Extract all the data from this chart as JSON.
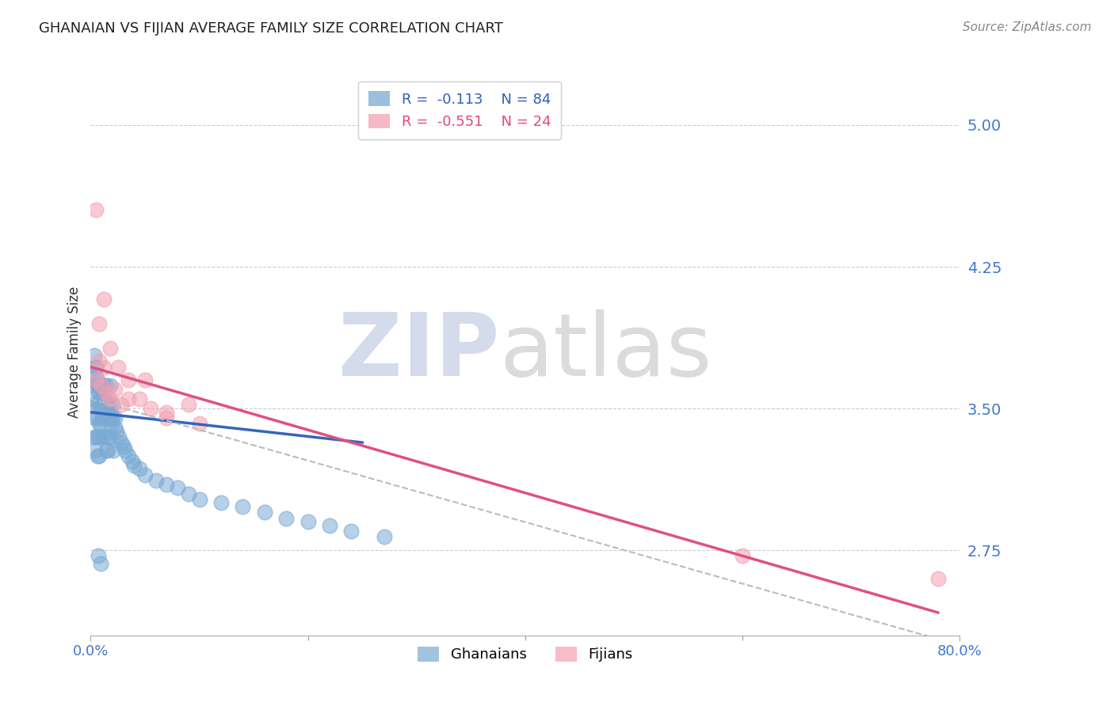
{
  "title": "GHANAIAN VS FIJIAN AVERAGE FAMILY SIZE CORRELATION CHART",
  "source": "Source: ZipAtlas.com",
  "ylabel": "Average Family Size",
  "xlim": [
    0.0,
    0.8
  ],
  "ylim": [
    2.3,
    5.3
  ],
  "yticks": [
    2.75,
    3.5,
    4.25,
    5.0
  ],
  "xticks": [
    0.0,
    0.8
  ],
  "xtick_labels": [
    "0.0%",
    "80.0%"
  ],
  "xticks_minor": [
    0.2,
    0.4,
    0.6
  ],
  "ghanaian_color": "#7BAAD4",
  "fijian_color": "#F4A0B0",
  "trend_blue": "#3366BB",
  "trend_pink": "#E05080",
  "trend_dashed": "#BBBBBB",
  "R_ghanaian": -0.113,
  "N_ghanaian": 84,
  "R_fijian": -0.551,
  "N_fijian": 24,
  "legend_label_ghanaian": "Ghanaians",
  "legend_label_fijian": "Fijians",
  "watermark_zip": "ZIP",
  "watermark_atlas": "atlas",
  "background_color": "#FFFFFF",
  "blue_trend_x0": 0.0,
  "blue_trend_x1": 0.25,
  "blue_trend_y0": 3.48,
  "blue_trend_y1": 3.32,
  "pink_trend_x0": 0.0,
  "pink_trend_x1": 0.78,
  "pink_trend_y0": 3.72,
  "pink_trend_y1": 2.42,
  "dash_trend_x0": 0.0,
  "dash_trend_x1": 0.78,
  "dash_trend_y0": 3.55,
  "dash_trend_y1": 2.28,
  "ghanaian_x": [
    0.002,
    0.003,
    0.003,
    0.004,
    0.004,
    0.005,
    0.005,
    0.005,
    0.006,
    0.006,
    0.006,
    0.007,
    0.007,
    0.008,
    0.008,
    0.008,
    0.009,
    0.009,
    0.01,
    0.01,
    0.01,
    0.011,
    0.011,
    0.012,
    0.012,
    0.013,
    0.013,
    0.014,
    0.014,
    0.015,
    0.015,
    0.016,
    0.016,
    0.017,
    0.018,
    0.018,
    0.019,
    0.02,
    0.021,
    0.022,
    0.003,
    0.004,
    0.005,
    0.006,
    0.007,
    0.008,
    0.009,
    0.01,
    0.011,
    0.012,
    0.013,
    0.014,
    0.015,
    0.016,
    0.017,
    0.018,
    0.019,
    0.02,
    0.022,
    0.024,
    0.026,
    0.028,
    0.03,
    0.032,
    0.035,
    0.038,
    0.04,
    0.045,
    0.05,
    0.06,
    0.07,
    0.08,
    0.09,
    0.1,
    0.12,
    0.14,
    0.16,
    0.18,
    0.2,
    0.22,
    0.24,
    0.27,
    0.007,
    0.009
  ],
  "ghanaian_y": [
    3.55,
    3.45,
    3.35,
    3.62,
    3.28,
    3.52,
    3.35,
    3.72,
    3.45,
    3.62,
    3.25,
    3.52,
    3.35,
    3.62,
    3.42,
    3.25,
    3.52,
    3.42,
    3.62,
    3.52,
    3.35,
    3.45,
    3.52,
    3.62,
    3.35,
    3.45,
    3.52,
    3.28,
    3.62,
    3.35,
    3.52,
    3.45,
    3.28,
    3.52,
    3.62,
    3.35,
    3.45,
    3.52,
    3.28,
    3.45,
    3.78,
    3.68,
    3.72,
    3.65,
    3.62,
    3.58,
    3.55,
    3.6,
    3.55,
    3.58,
    3.5,
    3.48,
    3.52,
    3.45,
    3.5,
    3.48,
    3.42,
    3.45,
    3.4,
    3.38,
    3.35,
    3.32,
    3.3,
    3.28,
    3.25,
    3.22,
    3.2,
    3.18,
    3.15,
    3.12,
    3.1,
    3.08,
    3.05,
    3.02,
    3.0,
    2.98,
    2.95,
    2.92,
    2.9,
    2.88,
    2.85,
    2.82,
    2.72,
    2.68
  ],
  "fijian_x": [
    0.005,
    0.008,
    0.01,
    0.012,
    0.015,
    0.018,
    0.022,
    0.028,
    0.035,
    0.045,
    0.055,
    0.07,
    0.09,
    0.005,
    0.008,
    0.012,
    0.018,
    0.025,
    0.035,
    0.05,
    0.07,
    0.1,
    0.6,
    0.78
  ],
  "fijian_y": [
    3.65,
    3.75,
    3.62,
    3.72,
    3.58,
    3.55,
    3.6,
    3.52,
    3.55,
    3.55,
    3.5,
    3.48,
    3.52,
    4.55,
    3.95,
    4.08,
    3.82,
    3.72,
    3.65,
    3.65,
    3.45,
    3.42,
    2.72,
    2.6
  ]
}
